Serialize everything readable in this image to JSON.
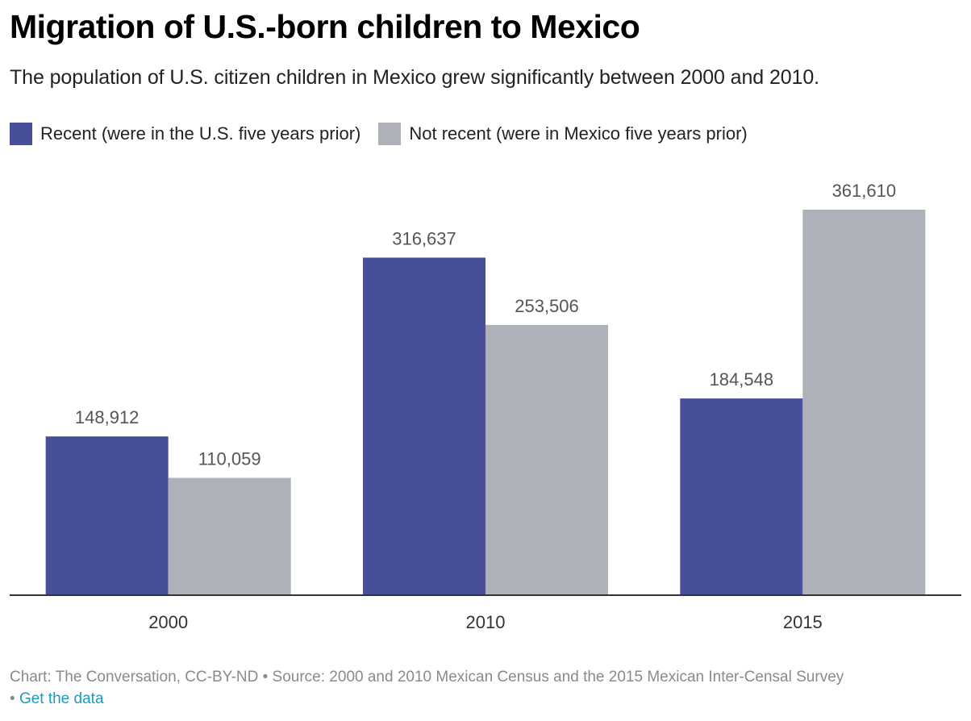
{
  "header": {
    "title": "Migration of U.S.-born children to Mexico",
    "subtitle": "The population of U.S. citizen children in Mexico grew significantly between 2000 and 2010."
  },
  "legend": [
    {
      "label": "Recent (were in the U.S. five years prior)",
      "color": "#484f9a"
    },
    {
      "label": "Not recent (were in Mexico five years prior)",
      "color": "#afb1ba"
    }
  ],
  "footer": {
    "credit": "Chart: The Conversation, CC-BY-ND • Source: 2000 and 2010 Mexican Census and the 2015 Mexican Inter-Censal Survey",
    "separator": "•",
    "link_label": "Get the data",
    "link_color": "#1a9bc2"
  },
  "chart_data": {
    "type": "bar",
    "title": "Migration of U.S.-born children to Mexico",
    "subtitle": "The population of U.S. citizen children in Mexico grew significantly between 2000 and 2010.",
    "xlabel": "",
    "ylabel": "",
    "categories": [
      "2000",
      "2010",
      "2015"
    ],
    "series": [
      {
        "name": "Recent (were in the U.S. five years prior)",
        "color": "#484f9a",
        "values": [
          148912,
          316637,
          184548
        ],
        "labels": [
          "148,912",
          "316,637",
          "184,548"
        ]
      },
      {
        "name": "Not recent (were in Mexico five years prior)",
        "color": "#afb1ba",
        "values": [
          110059,
          253506,
          361610
        ],
        "labels": [
          "110,059",
          "253,506",
          "361,610"
        ]
      }
    ],
    "ylim": [
      0,
      361610
    ],
    "grid": false,
    "legend_position": "top-left",
    "data_labels": true,
    "axis_color": "#333333",
    "label_color": "#555555"
  }
}
